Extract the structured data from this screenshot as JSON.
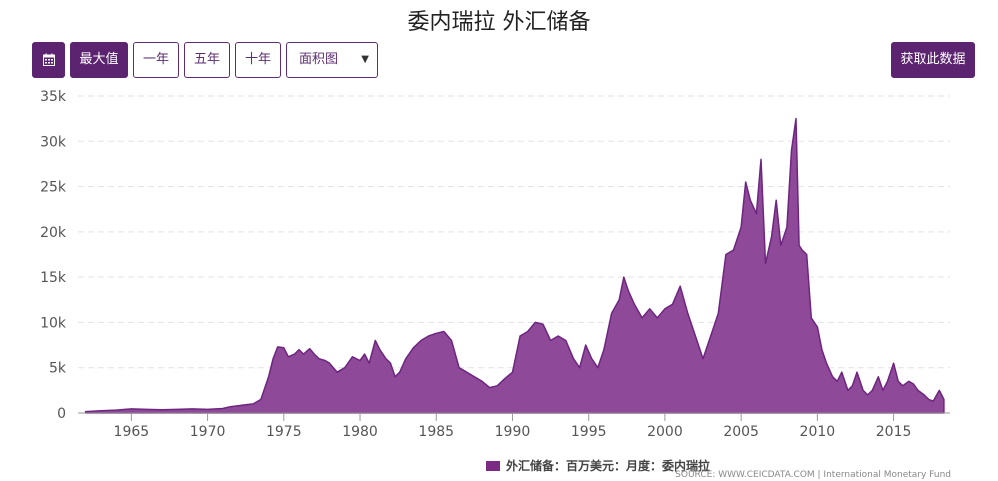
{
  "title": "委内瑞拉 外汇储备",
  "toolbar": {
    "calendar_icon": "calendar-icon",
    "max_label": "最大值",
    "one_year_label": "一年",
    "five_year_label": "五年",
    "ten_year_label": "十年",
    "chart_type_value": "面积图",
    "get_data_label": "获取此数据"
  },
  "legend": {
    "label": "外汇储备：百万美元：月度：委内瑞拉"
  },
  "source": "SOURCE: WWW.CEICDATA.COM | International Monetary Fund",
  "colors": {
    "accent": "#5c2370",
    "area_fill": "#8e4a98",
    "area_line": "#6e2580"
  },
  "chart_data": {
    "type": "area",
    "title": "委内瑞拉 外汇储备",
    "xlabel": "",
    "ylabel": "",
    "xlim": [
      1961.5,
      2018.7
    ],
    "ylim": [
      0,
      35000
    ],
    "x_ticks": [
      1965,
      1970,
      1975,
      1980,
      1985,
      1990,
      1995,
      2000,
      2005,
      2010,
      2015
    ],
    "y_ticks": [
      0,
      5000,
      10000,
      15000,
      20000,
      25000,
      30000,
      35000
    ],
    "y_tick_labels": [
      "0",
      "5k",
      "10k",
      "15k",
      "20k",
      "25k",
      "30k",
      "35k"
    ],
    "grid": true,
    "legend_position": "bottom-center",
    "series": [
      {
        "name": "外汇储备：百万美元：月度：委内瑞拉",
        "x": [
          1962.0,
          1963.0,
          1964.0,
          1965.0,
          1966.0,
          1967.0,
          1968.0,
          1969.0,
          1970.0,
          1971.0,
          1971.5,
          1972.0,
          1972.5,
          1973.0,
          1973.5,
          1974.0,
          1974.3,
          1974.6,
          1975.0,
          1975.3,
          1975.7,
          1976.0,
          1976.3,
          1976.7,
          1977.0,
          1977.3,
          1977.7,
          1978.0,
          1978.5,
          1979.0,
          1979.5,
          1980.0,
          1980.3,
          1980.6,
          1981.0,
          1981.3,
          1981.7,
          1982.0,
          1982.3,
          1982.6,
          1983.0,
          1983.5,
          1984.0,
          1984.5,
          1985.0,
          1985.5,
          1986.0,
          1986.5,
          1987.0,
          1987.5,
          1988.0,
          1988.5,
          1989.0,
          1989.5,
          1990.0,
          1990.5,
          1991.0,
          1991.5,
          1992.0,
          1992.5,
          1993.0,
          1993.5,
          1994.0,
          1994.4,
          1994.8,
          1995.2,
          1995.6,
          1996.0,
          1996.5,
          1997.0,
          1997.3,
          1997.6,
          1998.0,
          1998.5,
          1999.0,
          1999.5,
          2000.0,
          2000.5,
          2001.0,
          2001.5,
          2002.0,
          2002.5,
          2003.0,
          2003.5,
          2004.0,
          2004.5,
          2005.0,
          2005.3,
          2005.6,
          2006.0,
          2006.3,
          2006.6,
          2007.0,
          2007.3,
          2007.6,
          2008.0,
          2008.3,
          2008.6,
          2008.8,
          2009.0,
          2009.3,
          2009.6,
          2010.0,
          2010.3,
          2010.6,
          2011.0,
          2011.3,
          2011.6,
          2012.0,
          2012.3,
          2012.6,
          2013.0,
          2013.3,
          2013.6,
          2014.0,
          2014.3,
          2014.6,
          2015.0,
          2015.3,
          2015.6,
          2016.0,
          2016.3,
          2016.6,
          2017.0,
          2017.3,
          2017.6,
          2018.0,
          2018.3
        ],
        "values": [
          150,
          250,
          320,
          450,
          400,
          350,
          400,
          450,
          400,
          500,
          700,
          800,
          900,
          1000,
          1500,
          4000,
          6000,
          7300,
          7200,
          6200,
          6500,
          7000,
          6500,
          7100,
          6500,
          6000,
          5800,
          5500,
          4500,
          5000,
          6200,
          5800,
          6500,
          5500,
          8000,
          7000,
          6000,
          5500,
          4000,
          4500,
          6000,
          7200,
          8000,
          8500,
          8800,
          9000,
          8000,
          5000,
          4500,
          4000,
          3500,
          2800,
          3000,
          3800,
          4500,
          8500,
          9000,
          10000,
          9800,
          8000,
          8500,
          8000,
          6000,
          5000,
          7500,
          6000,
          5000,
          7000,
          11000,
          12500,
          15000,
          13500,
          12000,
          10500,
          11500,
          10500,
          11500,
          12000,
          14000,
          11000,
          8500,
          6000,
          8500,
          11000,
          17500,
          18000,
          20500,
          25500,
          23500,
          22000,
          28000,
          16500,
          19500,
          23500,
          18500,
          20500,
          29000,
          32500,
          18500,
          18000,
          17500,
          10500,
          9500,
          7000,
          5500,
          4000,
          3500,
          4500,
          2500,
          3000,
          4500,
          2500,
          2000,
          2500,
          4000,
          2500,
          3500,
          5500,
          3500,
          3000,
          3500,
          3200,
          2500,
          2000,
          1500,
          1300,
          2500,
          1500
        ]
      }
    ]
  }
}
